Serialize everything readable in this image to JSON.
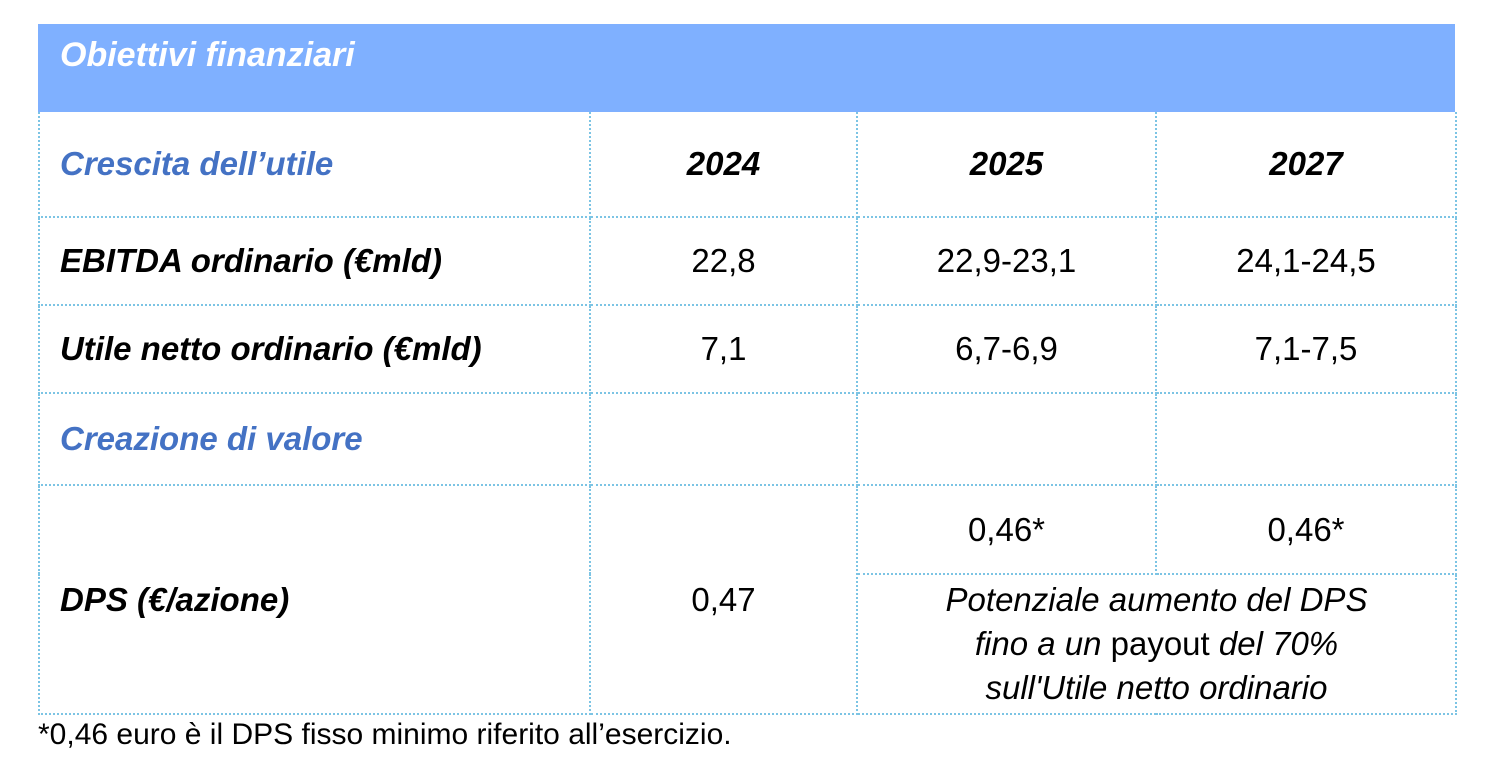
{
  "header": {
    "title": "Obiettivi finanziari"
  },
  "table": {
    "section_growth": "Crescita dell’utile",
    "years": [
      "2024",
      "2025",
      "2027"
    ],
    "rows": [
      {
        "label": "EBITDA ordinario (€mld)",
        "values": [
          "22,8",
          "22,9-23,1",
          "24,1-24,5"
        ]
      },
      {
        "label": "Utile netto ordinario (€mld)",
        "values": [
          "7,1",
          "6,7-6,9",
          "7,1-7,5"
        ]
      }
    ],
    "section_value": "Creazione di valore",
    "dps": {
      "label": "DPS (€/azione)",
      "value_2024": "0,47",
      "value_2025": "0,46*",
      "value_2027": "0,46*",
      "note_line1": "Potenziale aumento del DPS",
      "note_line2_a": "fino a un ",
      "note_line2_b": "payout",
      "note_line2_c": " del 70%",
      "note_line3": "sull'Utile netto ordinario"
    }
  },
  "footnote": "*0,46 euro è il DPS fisso minimo riferito all’esercizio."
}
